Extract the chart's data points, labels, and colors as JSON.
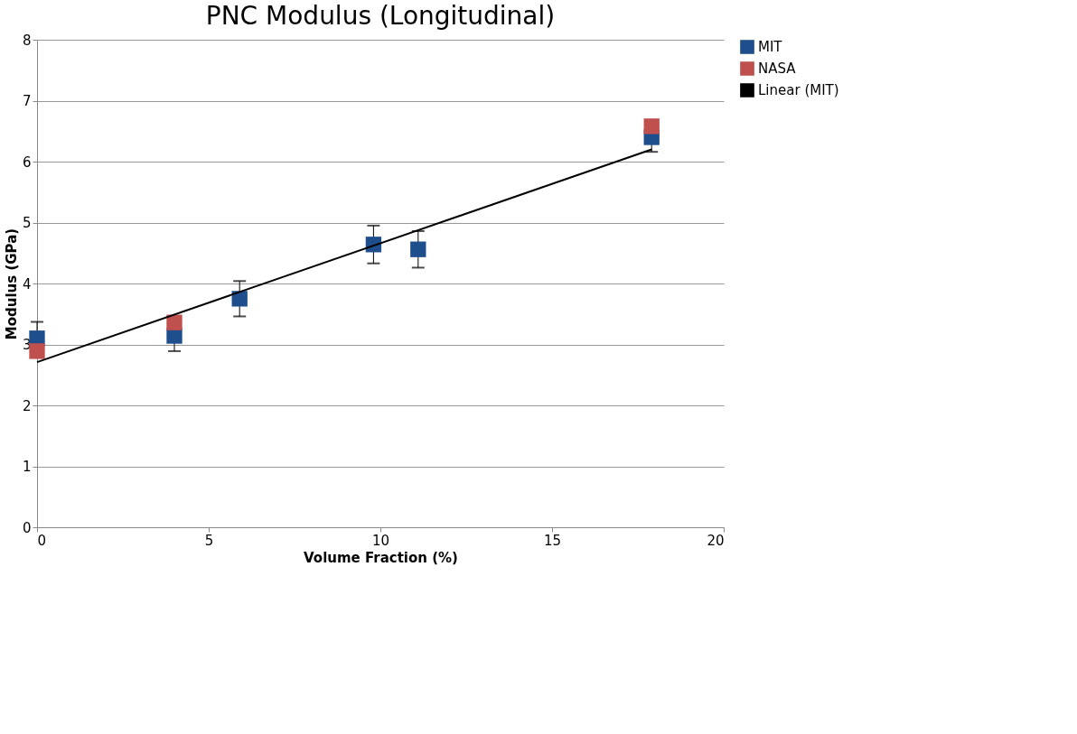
{
  "chart_data": {
    "type": "scatter",
    "title": "PNC Modulus (Longitudinal)",
    "xlabel": "Volume Fraction (%)",
    "ylabel": "Modulus  (GPa)",
    "xlim": [
      0,
      20
    ],
    "xticks": [
      0,
      5,
      10,
      15,
      20
    ],
    "ylim": [
      0,
      8
    ],
    "yticks": [
      0,
      1,
      2,
      3,
      4,
      5,
      6,
      7,
      8
    ],
    "grid": "y",
    "legend": "right",
    "marker": "square",
    "series": [
      {
        "name": "MIT",
        "color": "#1f4e8c",
        "x": [
          0,
          4,
          5.9,
          9.8,
          11.1,
          17.9
        ],
        "values": [
          3.1,
          3.14,
          3.75,
          4.64,
          4.56,
          6.4
        ],
        "errors": [
          0.27,
          0.25,
          0.29,
          0.31,
          0.3,
          0.24
        ]
      },
      {
        "name": "NASA",
        "color": "#c0504d",
        "x": [
          0,
          4,
          17.9
        ],
        "values": [
          2.89,
          3.36,
          6.58
        ]
      },
      {
        "name": "Linear (MIT)",
        "color": "#000000",
        "type": "line",
        "marker": "none",
        "line_style": "solid",
        "x": [
          0,
          17.9
        ],
        "values": [
          2.71,
          6.2
        ]
      }
    ]
  }
}
